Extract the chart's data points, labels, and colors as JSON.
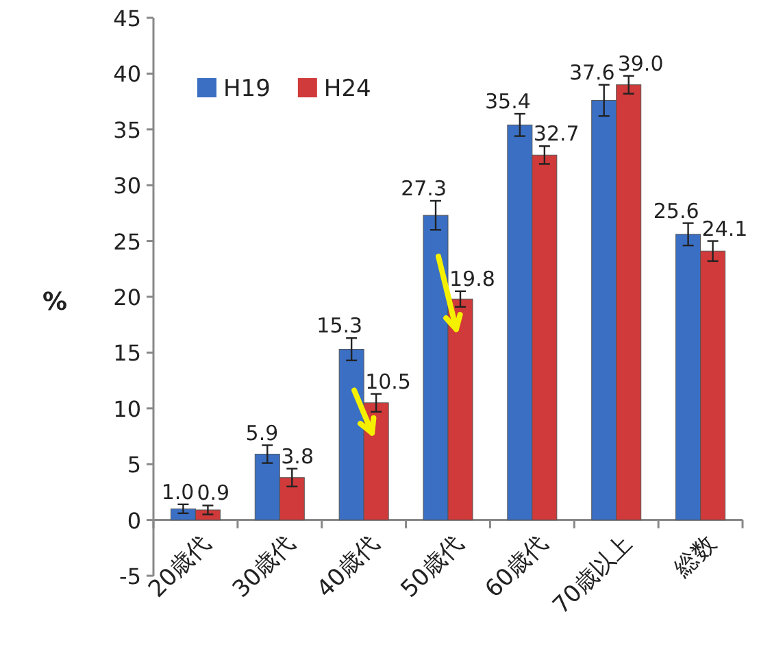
{
  "chart_data": {
    "type": "bar",
    "categories": [
      "20歳代",
      "30歳代",
      "40歳代",
      "50歳代",
      "60歳代",
      "70歳以上",
      "総数"
    ],
    "ylabel": "%",
    "series": [
      {
        "name": "H19",
        "color": "#3a6fc4",
        "values": [
          1.0,
          5.9,
          15.3,
          27.3,
          35.4,
          37.6,
          25.6
        ],
        "errors": [
          0.4,
          0.8,
          1.0,
          1.3,
          1.0,
          1.4,
          1.0
        ],
        "value_labels": [
          "1.0",
          "5.9",
          "15.3",
          "27.3",
          "35.4",
          "37.6",
          "25.6"
        ]
      },
      {
        "name": "H24",
        "color": "#d03a3a",
        "values": [
          0.9,
          3.8,
          10.5,
          19.8,
          32.7,
          39.0,
          24.1
        ],
        "errors": [
          0.4,
          0.8,
          0.8,
          0.7,
          0.8,
          0.8,
          0.9
        ],
        "value_labels": [
          "0.9",
          "3.8",
          "10.5",
          "19.8",
          "32.7",
          "39.0",
          "24.1"
        ]
      }
    ],
    "ylim": [
      -5,
      45
    ],
    "yticks": [
      -5,
      0,
      5,
      10,
      15,
      20,
      25,
      30,
      35,
      40,
      45
    ],
    "legend": "top left",
    "grid": false
  }
}
